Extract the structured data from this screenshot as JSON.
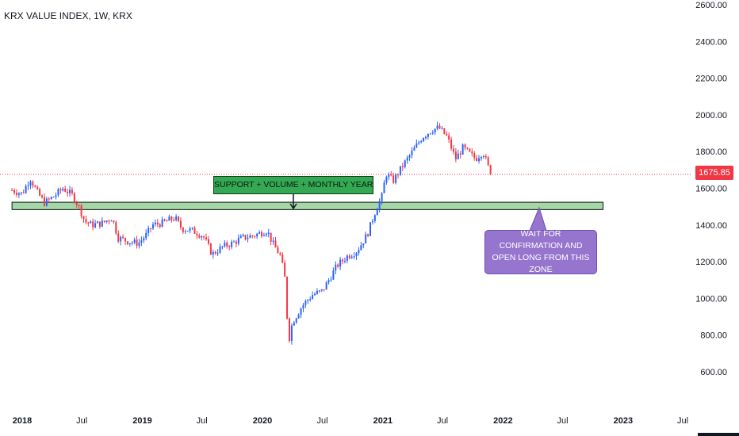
{
  "title": "KRX VALUE INDEX, 1W, KRX",
  "annotations": {
    "support_label": "SUPPORT + VOLUME + MONTHLY YEARLY OPEN",
    "note_line1": "WAIT FOR CONFIRMATION AND",
    "note_line2": "OPEN LONG FROM THIS ZONE"
  },
  "colors": {
    "up": "#2962ff",
    "down": "#f23645",
    "zone_fill": "#a5d6a7",
    "support_box": "#34a853",
    "note_box": "#9575cd",
    "price_line": "#f23645"
  },
  "chart_data": {
    "type": "candlestick",
    "title": "KRX VALUE INDEX, 1W, KRX",
    "x_ticks": [
      {
        "label": "2018",
        "date": "2018-01"
      },
      {
        "label": "Jul",
        "date": "2018-07"
      },
      {
        "label": "2019",
        "date": "2019-01"
      },
      {
        "label": "Jul",
        "date": "2019-07"
      },
      {
        "label": "2020",
        "date": "2020-01"
      },
      {
        "label": "Jul",
        "date": "2020-07"
      },
      {
        "label": "2021",
        "date": "2021-01"
      },
      {
        "label": "Jul",
        "date": "2021-07"
      },
      {
        "label": "2022",
        "date": "2022-01"
      },
      {
        "label": "Jul",
        "date": "2022-07"
      },
      {
        "label": "2023",
        "date": "2023-01"
      },
      {
        "label": "Jul",
        "date": "2023-07"
      }
    ],
    "y_ticks": [
      "600.00",
      "800.00",
      "1000.00",
      "1200.00",
      "1400.00",
      "1600.00",
      "1800.00",
      "2000.00",
      "2200.00",
      "2400.00",
      "2600.00"
    ],
    "ylim": [
      520,
      2620
    ],
    "last_price": 1675.85,
    "last_price_label": "1675.85",
    "support_zone": {
      "from_date": "2017-12",
      "to_date": "2022-11",
      "low": 1484,
      "high": 1524
    },
    "price_path": [
      [
        "2017-12-01",
        1590
      ],
      [
        "2018-01-01",
        1570
      ],
      [
        "2018-01-25",
        1655
      ],
      [
        "2018-02-15",
        1580
      ],
      [
        "2018-03-10",
        1520
      ],
      [
        "2018-04-10",
        1560
      ],
      [
        "2018-05-05",
        1600
      ],
      [
        "2018-06-01",
        1565
      ],
      [
        "2018-06-25",
        1490
      ],
      [
        "2018-07-10",
        1420
      ],
      [
        "2018-08-01",
        1400
      ],
      [
        "2018-09-01",
        1410
      ],
      [
        "2018-10-01",
        1440
      ],
      [
        "2018-10-20",
        1330
      ],
      [
        "2018-11-20",
        1310
      ],
      [
        "2018-12-20",
        1300
      ],
      [
        "2019-01-15",
        1350
      ],
      [
        "2019-02-01",
        1400
      ],
      [
        "2019-03-01",
        1410
      ],
      [
        "2019-04-10",
        1440
      ],
      [
        "2019-05-01",
        1380
      ],
      [
        "2019-06-01",
        1370
      ],
      [
        "2019-07-05",
        1340
      ],
      [
        "2019-08-01",
        1240
      ],
      [
        "2019-09-01",
        1280
      ],
      [
        "2019-10-01",
        1300
      ],
      [
        "2019-11-01",
        1330
      ],
      [
        "2019-12-01",
        1340
      ],
      [
        "2020-01-15",
        1370
      ],
      [
        "2020-02-01",
        1300
      ],
      [
        "2020-02-25",
        1230
      ],
      [
        "2020-03-10",
        1100
      ],
      [
        "2020-03-20",
        760
      ],
      [
        "2020-04-01",
        870
      ],
      [
        "2020-05-01",
        960
      ],
      [
        "2020-06-01",
        1020
      ],
      [
        "2020-07-01",
        1040
      ],
      [
        "2020-08-15",
        1180
      ],
      [
        "2020-09-15",
        1230
      ],
      [
        "2020-10-15",
        1260
      ],
      [
        "2020-11-15",
        1350
      ],
      [
        "2020-12-10",
        1480
      ],
      [
        "2020-12-30",
        1560
      ],
      [
        "2021-01-10",
        1680
      ],
      [
        "2021-02-01",
        1640
      ],
      [
        "2021-03-01",
        1720
      ],
      [
        "2021-04-01",
        1800
      ],
      [
        "2021-05-01",
        1880
      ],
      [
        "2021-06-01",
        1920
      ],
      [
        "2021-06-20",
        1930
      ],
      [
        "2021-07-15",
        1880
      ],
      [
        "2021-08-10",
        1760
      ],
      [
        "2021-09-01",
        1820
      ],
      [
        "2021-10-10",
        1760
      ],
      [
        "2021-11-01",
        1800
      ],
      [
        "2021-11-20",
        1700
      ],
      [
        "2021-11-28",
        1676
      ]
    ]
  }
}
